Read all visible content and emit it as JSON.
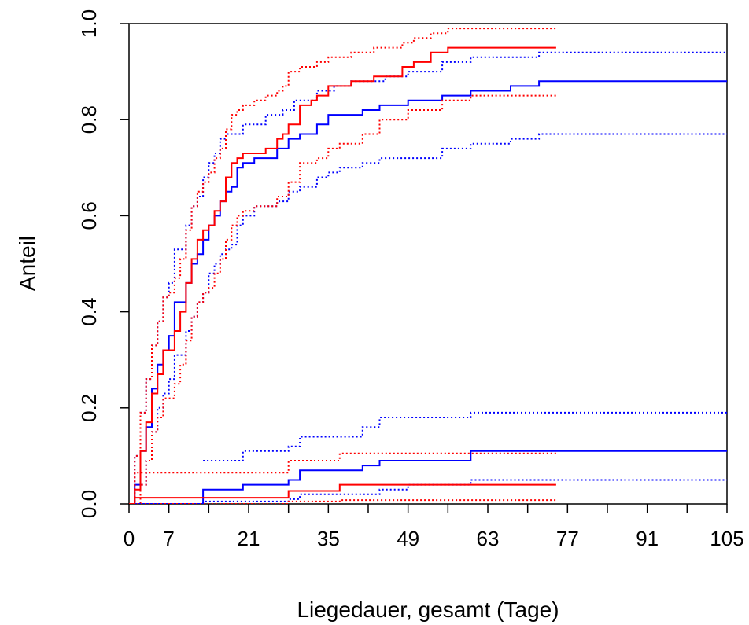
{
  "chart_data": {
    "type": "line",
    "subtype": "step (cumulative incidence with confidence bands)",
    "xlabel": "Liegedauer, gesamt (Tage)",
    "ylabel": "Anteil",
    "xlim": [
      0,
      105
    ],
    "ylim": [
      0,
      1.0
    ],
    "xticks": [
      0,
      7,
      21,
      35,
      49,
      63,
      77,
      91,
      105
    ],
    "xticks_minor": [
      14,
      28,
      42,
      56,
      70,
      84,
      98
    ],
    "yticks": [
      "0.0",
      "0.2",
      "0.4",
      "0.6",
      "0.8",
      "1.0"
    ],
    "grid": false,
    "legend": "none",
    "series": [
      {
        "color": "#0000ff",
        "style": "solid",
        "x": [
          0,
          1,
          2,
          3,
          4,
          5,
          6,
          7,
          8,
          10,
          11,
          12,
          13,
          14,
          15,
          16,
          17,
          18,
          19,
          20,
          22,
          26,
          28,
          30,
          33,
          35,
          37,
          41,
          44,
          49,
          55,
          60,
          67,
          72,
          73,
          105
        ],
        "y": [
          0,
          0.04,
          0.11,
          0.16,
          0.24,
          0.29,
          0.32,
          0.35,
          0.42,
          0.46,
          0.5,
          0.52,
          0.55,
          0.58,
          0.6,
          0.63,
          0.65,
          0.66,
          0.7,
          0.71,
          0.72,
          0.74,
          0.76,
          0.77,
          0.79,
          0.81,
          0.81,
          0.82,
          0.83,
          0.84,
          0.85,
          0.86,
          0.87,
          0.88,
          0.88,
          0.88
        ]
      },
      {
        "color": "#0000ff",
        "style": "dotted",
        "x": [
          0,
          1,
          2,
          3,
          4,
          5,
          6,
          7,
          8,
          10,
          11,
          12,
          13,
          14,
          15,
          16,
          17,
          20,
          24,
          27,
          29,
          33,
          36,
          39,
          45,
          49,
          55,
          60,
          72,
          105
        ],
        "y": [
          0,
          0.1,
          0.19,
          0.26,
          0.33,
          0.38,
          0.43,
          0.46,
          0.53,
          0.58,
          0.62,
          0.64,
          0.68,
          0.71,
          0.73,
          0.76,
          0.77,
          0.79,
          0.81,
          0.82,
          0.84,
          0.86,
          0.87,
          0.88,
          0.89,
          0.9,
          0.92,
          0.93,
          0.94,
          0.94
        ]
      },
      {
        "color": "#0000ff",
        "style": "dotted",
        "x": [
          0,
          1,
          2,
          3,
          4,
          5,
          6,
          7,
          8,
          10,
          11,
          12,
          13,
          14,
          15,
          16,
          17,
          18,
          19,
          20,
          22,
          26,
          28,
          30,
          33,
          35,
          37,
          41,
          44,
          49,
          55,
          60,
          67,
          72,
          105
        ],
        "y": [
          0,
          0,
          0.04,
          0.09,
          0.15,
          0.2,
          0.23,
          0.26,
          0.31,
          0.36,
          0.39,
          0.42,
          0.44,
          0.48,
          0.5,
          0.52,
          0.53,
          0.54,
          0.58,
          0.6,
          0.62,
          0.63,
          0.65,
          0.66,
          0.68,
          0.69,
          0.7,
          0.71,
          0.72,
          0.72,
          0.74,
          0.75,
          0.76,
          0.77,
          0.77
        ]
      },
      {
        "color": "#ff0000",
        "style": "solid",
        "x": [
          0,
          1,
          2,
          3,
          4,
          5,
          6,
          7,
          8,
          9,
          10,
          11,
          12,
          13,
          14,
          15,
          16,
          17,
          18,
          19,
          20,
          22,
          24,
          26,
          27,
          28,
          30,
          32,
          33,
          35,
          37,
          39,
          41,
          43,
          46,
          48,
          50,
          53,
          56,
          60,
          75
        ],
        "y": [
          0,
          0.03,
          0.11,
          0.17,
          0.23,
          0.27,
          0.32,
          0.32,
          0.36,
          0.4,
          0.46,
          0.51,
          0.55,
          0.57,
          0.58,
          0.61,
          0.63,
          0.68,
          0.71,
          0.72,
          0.73,
          0.73,
          0.74,
          0.76,
          0.77,
          0.79,
          0.83,
          0.84,
          0.85,
          0.87,
          0.87,
          0.88,
          0.88,
          0.89,
          0.89,
          0.91,
          0.92,
          0.94,
          0.95,
          0.95,
          0.95
        ]
      },
      {
        "color": "#ff0000",
        "style": "dotted",
        "x": [
          0,
          1,
          2,
          3,
          4,
          5,
          6,
          7,
          8,
          9,
          10,
          11,
          12,
          13,
          14,
          15,
          16,
          17,
          18,
          19,
          20,
          22,
          24,
          26,
          27,
          28,
          30,
          32,
          33,
          35,
          39,
          43,
          46,
          48,
          50,
          53,
          56,
          60,
          75
        ],
        "y": [
          0,
          0.1,
          0.19,
          0.26,
          0.33,
          0.38,
          0.43,
          0.44,
          0.47,
          0.51,
          0.57,
          0.62,
          0.65,
          0.67,
          0.69,
          0.72,
          0.74,
          0.78,
          0.81,
          0.82,
          0.83,
          0.84,
          0.85,
          0.86,
          0.87,
          0.9,
          0.91,
          0.91,
          0.92,
          0.93,
          0.94,
          0.95,
          0.95,
          0.96,
          0.97,
          0.98,
          0.99,
          0.99,
          0.99
        ]
      },
      {
        "color": "#ff0000",
        "style": "dotted",
        "x": [
          0,
          1,
          2,
          3,
          4,
          5,
          6,
          7,
          8,
          9,
          10,
          11,
          12,
          13,
          14,
          15,
          16,
          17,
          18,
          19,
          20,
          22,
          26,
          28,
          30,
          33,
          35,
          37,
          41,
          44,
          49,
          55,
          60,
          75
        ],
        "y": [
          0,
          0,
          0.04,
          0.09,
          0.15,
          0.18,
          0.22,
          0.22,
          0.25,
          0.29,
          0.34,
          0.39,
          0.42,
          0.44,
          0.45,
          0.48,
          0.51,
          0.55,
          0.58,
          0.6,
          0.61,
          0.62,
          0.64,
          0.67,
          0.71,
          0.72,
          0.74,
          0.75,
          0.77,
          0.8,
          0.82,
          0.84,
          0.85,
          0.85
        ]
      },
      {
        "color": "#0000ff",
        "style": "solid",
        "x": [
          0,
          13,
          20,
          28,
          30,
          37,
          41,
          44,
          49,
          60,
          105
        ],
        "y": [
          0,
          0.03,
          0.04,
          0.05,
          0.07,
          0.07,
          0.08,
          0.09,
          0.09,
          0.11,
          0.11
        ]
      },
      {
        "color": "#0000ff",
        "style": "dotted",
        "x": [
          13,
          20,
          28,
          30,
          37,
          41,
          44,
          49,
          60,
          105
        ],
        "y": [
          0.09,
          0.11,
          0.12,
          0.14,
          0.14,
          0.16,
          0.18,
          0.18,
          0.19,
          0.19
        ]
      },
      {
        "color": "#0000ff",
        "style": "dotted",
        "x": [
          0,
          13,
          28,
          30,
          37,
          44,
          49,
          60,
          105
        ],
        "y": [
          0,
          0.005,
          0.01,
          0.02,
          0.02,
          0.03,
          0.04,
          0.05,
          0.05
        ]
      },
      {
        "color": "#ff0000",
        "style": "solid",
        "x": [
          0,
          1,
          28,
          37,
          75
        ],
        "y": [
          0,
          0.013,
          0.027,
          0.04,
          0.04
        ]
      },
      {
        "color": "#ff0000",
        "style": "dotted",
        "x": [
          0,
          1,
          28,
          37,
          75
        ],
        "y": [
          0,
          0.065,
          0.09,
          0.105,
          0.105
        ]
      },
      {
        "color": "#ff0000",
        "style": "dotted",
        "x": [
          0,
          28,
          37,
          75
        ],
        "y": [
          0,
          0.005,
          0.008,
          0.01
        ]
      }
    ]
  }
}
